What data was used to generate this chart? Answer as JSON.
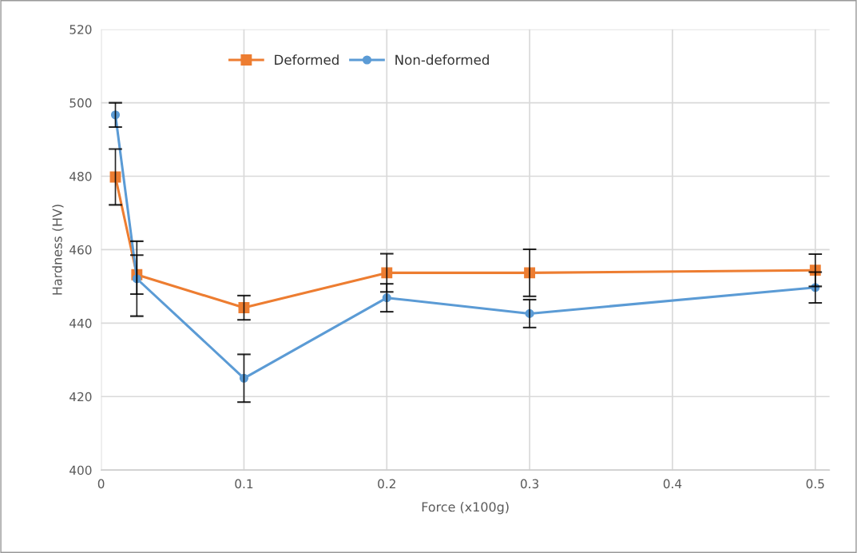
{
  "chart_data": {
    "type": "line",
    "xlabel": "Force (x100g)",
    "ylabel": "Hardness (HV)",
    "x": [
      0.01,
      0.025,
      0.1,
      0.2,
      0.3,
      0.5
    ],
    "series": [
      {
        "name": "Deformed",
        "color": "#ed7d31",
        "marker": "square",
        "values": [
          479.8,
          453.2,
          444.2,
          453.7,
          453.7,
          454.4
        ],
        "errors": [
          7.6,
          5.3,
          3.3,
          5.2,
          6.4,
          4.4
        ]
      },
      {
        "name": "Non-deformed",
        "color": "#5b9bd5",
        "marker": "circle",
        "values": [
          496.7,
          452.1,
          425.0,
          446.9,
          442.6,
          449.7
        ],
        "errors": [
          3.3,
          10.2,
          6.5,
          3.8,
          3.8,
          4.2
        ]
      }
    ],
    "xlim": [
      0,
      0.51
    ],
    "xticks": [
      0,
      0.1,
      0.2,
      0.3,
      0.4,
      0.5
    ],
    "ylim": [
      400,
      520
    ],
    "yticks": [
      400,
      420,
      440,
      460,
      480,
      500,
      520
    ],
    "grid": true,
    "legend": "top left",
    "line_style": "solid"
  }
}
